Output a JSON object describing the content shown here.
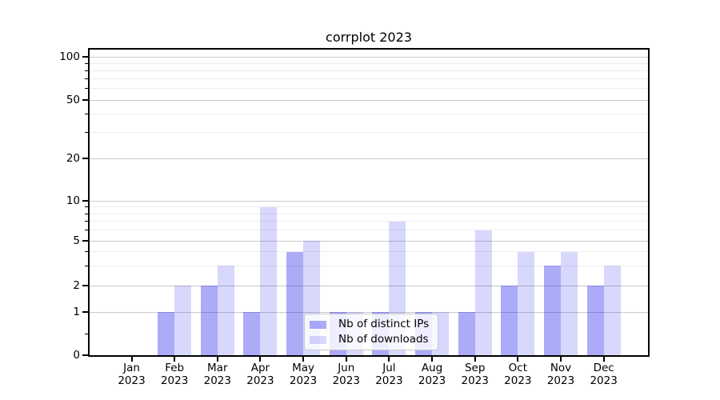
{
  "chart_data": {
    "type": "bar",
    "title": "corrplot 2023",
    "categories": [
      {
        "month": "Jan",
        "year": "2023"
      },
      {
        "month": "Feb",
        "year": "2023"
      },
      {
        "month": "Mar",
        "year": "2023"
      },
      {
        "month": "Apr",
        "year": "2023"
      },
      {
        "month": "May",
        "year": "2023"
      },
      {
        "month": "Jun",
        "year": "2023"
      },
      {
        "month": "Jul",
        "year": "2023"
      },
      {
        "month": "Aug",
        "year": "2023"
      },
      {
        "month": "Sep",
        "year": "2023"
      },
      {
        "month": "Oct",
        "year": "2023"
      },
      {
        "month": "Nov",
        "year": "2023"
      },
      {
        "month": "Dec",
        "year": "2023"
      }
    ],
    "series": [
      {
        "name": "Nb of distinct IPs",
        "color": "rgba(15,15,235,0.35)",
        "values": [
          0,
          1,
          2,
          1,
          4,
          1,
          1,
          1,
          1,
          2,
          3,
          2
        ]
      },
      {
        "name": "Nb of downloads",
        "color": "rgba(15,15,235,0.16)",
        "values": [
          0,
          2,
          3,
          9,
          5,
          1,
          7,
          1,
          6,
          4,
          4,
          3
        ]
      }
    ],
    "y_axis": {
      "major_ticks": [
        0,
        1,
        2,
        5,
        10,
        20,
        50,
        100
      ],
      "minor_ticks": [
        0.5,
        3,
        4,
        6,
        7,
        8,
        9,
        30,
        40,
        60,
        70,
        80,
        90
      ],
      "scale": "linear below 1, logarithmic above 1",
      "range": [
        0,
        115
      ]
    },
    "x_axis": {
      "year_row": "2023"
    },
    "legend": {
      "position": "lower center"
    },
    "grid": "horizontal major and minor gridlines"
  }
}
